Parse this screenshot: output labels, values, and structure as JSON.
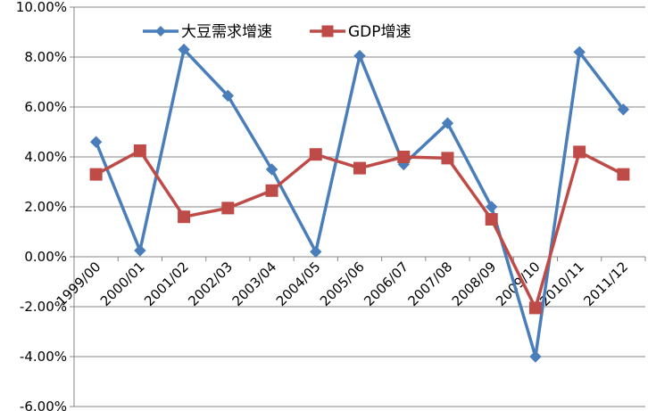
{
  "chart_data": {
    "type": "line",
    "title": "",
    "xlabel": "",
    "ylabel": "",
    "categories": [
      "1999/00",
      "2000/01",
      "2001/02",
      "2002/03",
      "2003/04",
      "2004/05",
      "2005/06",
      "2006/07",
      "2007/08",
      "2008/09",
      "2009/10",
      "2010/11",
      "2011/12"
    ],
    "ylim": [
      -6,
      10
    ],
    "yticks": [
      "10.00%",
      "8.00%",
      "6.00%",
      "4.00%",
      "2.00%",
      "0.00%",
      "-2.00%",
      "-4.00%",
      "-6.00%"
    ],
    "ytick_values": [
      10,
      8,
      6,
      4,
      2,
      0,
      -2,
      -4,
      -6
    ],
    "grid": "horizontal",
    "legend_position": "top",
    "series": [
      {
        "name": "大豆需求增速",
        "color": "#4a7ebb",
        "marker": "diamond",
        "values": [
          4.6,
          0.25,
          8.3,
          6.45,
          3.5,
          0.2,
          8.05,
          3.7,
          5.35,
          2.0,
          -4.0,
          8.2,
          5.9
        ]
      },
      {
        "name": "GDP增速",
        "color": "#be4b48",
        "marker": "square",
        "values": [
          3.3,
          4.25,
          1.6,
          1.95,
          2.65,
          4.1,
          3.55,
          4.0,
          3.95,
          1.5,
          -2.05,
          4.2,
          3.3
        ]
      }
    ]
  }
}
